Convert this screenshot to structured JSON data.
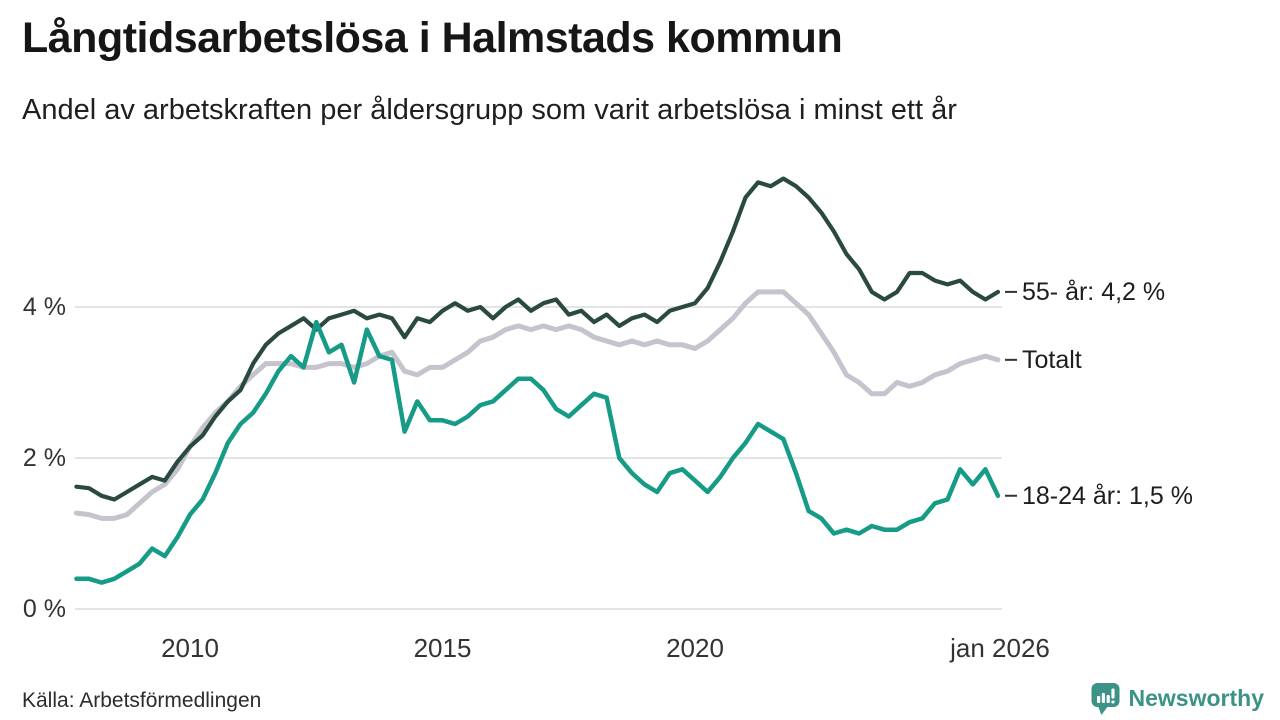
{
  "header": {
    "title": "Långtidsarbetslösa i Halmstads kommun",
    "subtitle": "Andel av arbetskraften per åldersgrupp som varit arbetslösa i minst ett år"
  },
  "footer": {
    "source": "Källa: Arbetsförmedlingen",
    "brand": "Newsworthy"
  },
  "colors": {
    "series_55": "#2a4a40",
    "series_total": "#c4c3ce",
    "series_18_24": "#169b87",
    "grid": "#e4e4e4",
    "axis_text": "#333333",
    "end_label_text": "#1d1d1d",
    "end_tick": "#333333",
    "brand_teal": "#3b9287"
  },
  "chart_data": {
    "type": "line",
    "title": "Långtidsarbetslösa i Halmstads kommun",
    "subtitle": "Andel av arbetskraften per åldersgrupp som varit arbetslösa i minst ett år",
    "y_unit": "%",
    "grid": true,
    "legend_position": "right-end-labels",
    "x_range": [
      2007.75,
      2026.04
    ],
    "y_range": [
      0,
      6
    ],
    "y_ticks": [
      {
        "label": "0 %",
        "value": 0
      },
      {
        "label": "2 %",
        "value": 2
      },
      {
        "label": "4 %",
        "value": 4
      }
    ],
    "x_ticks": [
      {
        "label": "2010",
        "year": 2010
      },
      {
        "label": "2015",
        "year": 2015
      },
      {
        "label": "2020",
        "year": 2020
      },
      {
        "label": "jan 2026",
        "year": 2026.04
      }
    ],
    "x": [
      2007.75,
      2008.0,
      2008.25,
      2008.5,
      2008.75,
      2009.0,
      2009.25,
      2009.5,
      2009.75,
      2010.0,
      2010.25,
      2010.5,
      2010.75,
      2011.0,
      2011.25,
      2011.5,
      2011.75,
      2012.0,
      2012.25,
      2012.5,
      2012.75,
      2013.0,
      2013.25,
      2013.5,
      2013.75,
      2014.0,
      2014.25,
      2014.5,
      2014.75,
      2015.0,
      2015.25,
      2015.5,
      2015.75,
      2016.0,
      2016.25,
      2016.5,
      2016.75,
      2017.0,
      2017.25,
      2017.5,
      2017.75,
      2018.0,
      2018.25,
      2018.5,
      2018.75,
      2019.0,
      2019.25,
      2019.5,
      2019.75,
      2020.0,
      2020.25,
      2020.5,
      2020.75,
      2021.0,
      2021.25,
      2021.5,
      2021.75,
      2022.0,
      2022.25,
      2022.5,
      2022.75,
      2023.0,
      2023.25,
      2023.5,
      2023.75,
      2024.0,
      2024.25,
      2024.5,
      2024.75,
      2025.0,
      2025.25,
      2025.5,
      2025.75,
      2026.0
    ],
    "series": [
      {
        "name": "Totalt",
        "end_label": "Totalt",
        "end_value_text": "",
        "color": "#c4c3ce",
        "stroke_width": 5,
        "values": [
          1.27,
          1.25,
          1.2,
          1.2,
          1.25,
          1.4,
          1.55,
          1.65,
          1.85,
          2.15,
          2.4,
          2.6,
          2.75,
          2.95,
          3.1,
          3.25,
          3.25,
          3.25,
          3.2,
          3.2,
          3.25,
          3.25,
          3.2,
          3.25,
          3.35,
          3.4,
          3.15,
          3.1,
          3.2,
          3.2,
          3.3,
          3.4,
          3.55,
          3.6,
          3.7,
          3.75,
          3.7,
          3.75,
          3.7,
          3.75,
          3.7,
          3.6,
          3.55,
          3.5,
          3.55,
          3.5,
          3.55,
          3.5,
          3.5,
          3.45,
          3.55,
          3.7,
          3.85,
          4.05,
          4.2,
          4.2,
          4.2,
          4.05,
          3.9,
          3.65,
          3.4,
          3.1,
          3.0,
          2.85,
          2.85,
          3.0,
          2.95,
          3.0,
          3.1,
          3.15,
          3.25,
          3.3,
          3.35,
          3.3
        ]
      },
      {
        "name": "55- år",
        "end_label": "55- år: 4,2 %",
        "end_value_text": "4,2 %",
        "color": "#2a4a40",
        "stroke_width": 4.2,
        "values": [
          1.62,
          1.6,
          1.5,
          1.45,
          1.55,
          1.65,
          1.75,
          1.7,
          1.95,
          2.15,
          2.3,
          2.55,
          2.75,
          2.9,
          3.25,
          3.5,
          3.65,
          3.75,
          3.85,
          3.7,
          3.85,
          3.9,
          3.95,
          3.85,
          3.9,
          3.85,
          3.6,
          3.85,
          3.8,
          3.95,
          4.05,
          3.95,
          4.0,
          3.85,
          4.0,
          4.1,
          3.95,
          4.05,
          4.1,
          3.9,
          3.95,
          3.8,
          3.9,
          3.75,
          3.85,
          3.9,
          3.8,
          3.95,
          4.0,
          4.05,
          4.25,
          4.6,
          5.0,
          5.45,
          5.65,
          5.6,
          5.7,
          5.6,
          5.45,
          5.25,
          5.0,
          4.7,
          4.5,
          4.2,
          4.1,
          4.2,
          4.45,
          4.45,
          4.35,
          4.3,
          4.35,
          4.2,
          4.1,
          4.2
        ]
      },
      {
        "name": "18-24 år",
        "end_label": "18-24 år: 1,5 %",
        "end_value_text": "1,5 %",
        "color": "#169b87",
        "stroke_width": 4.5,
        "values": [
          0.4,
          0.4,
          0.35,
          0.4,
          0.5,
          0.6,
          0.8,
          0.7,
          0.95,
          1.25,
          1.45,
          1.8,
          2.2,
          2.45,
          2.6,
          2.85,
          3.15,
          3.35,
          3.2,
          3.8,
          3.4,
          3.5,
          3.0,
          3.7,
          3.35,
          3.3,
          2.35,
          2.75,
          2.5,
          2.5,
          2.45,
          2.55,
          2.7,
          2.75,
          2.9,
          3.05,
          3.05,
          2.9,
          2.65,
          2.55,
          2.7,
          2.85,
          2.8,
          2.0,
          1.8,
          1.65,
          1.55,
          1.8,
          1.85,
          1.7,
          1.55,
          1.75,
          2.0,
          2.2,
          2.45,
          2.35,
          2.25,
          1.8,
          1.3,
          1.2,
          1.0,
          1.05,
          1.0,
          1.1,
          1.05,
          1.05,
          1.15,
          1.2,
          1.4,
          1.45,
          1.85,
          1.65,
          1.85,
          1.5
        ]
      }
    ]
  }
}
